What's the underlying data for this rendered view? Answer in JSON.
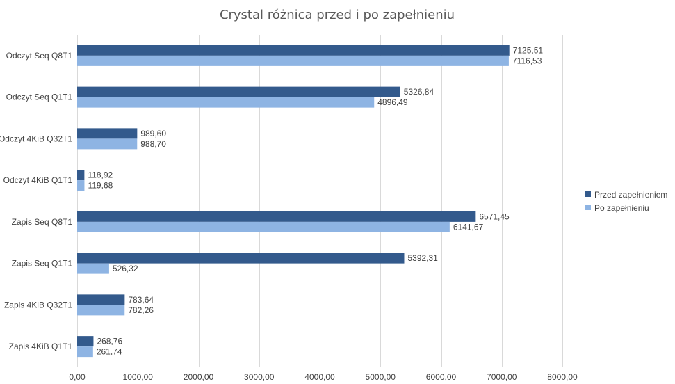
{
  "chart_data": {
    "type": "bar",
    "orientation": "horizontal",
    "title": "Crystal różnica przed i po zapełnieniu",
    "categories": [
      "Odczyt Seq Q8T1",
      "Odczyt Seq Q1T1",
      "Odczyt 4KiB Q32T1",
      "Odczyt 4KiB Q1T1",
      "Zapis Seq Q8T1",
      "Zapis Seq Q1T1",
      "Zapis 4KiB Q32T1",
      "Zapis 4KiB Q1T1"
    ],
    "series": [
      {
        "name": "Przed zapełnieniem",
        "color": "#335a8c",
        "values": [
          7125.51,
          5326.84,
          989.6,
          118.92,
          6571.45,
          5392.31,
          783.64,
          268.76
        ],
        "labels": [
          "7125,51",
          "5326,84",
          "989,60",
          "118,92",
          "6571,45",
          "5392,31",
          "783,64",
          "268,76"
        ]
      },
      {
        "name": "Po zapełnieniu",
        "color": "#8eb4e3",
        "values": [
          7116.53,
          4896.49,
          988.7,
          119.68,
          6141.67,
          526.32,
          782.26,
          261.74
        ],
        "labels": [
          "7116,53",
          "4896,49",
          "988,70",
          "119,68",
          "6141,67",
          "526,32",
          "782,26",
          "261,74"
        ]
      }
    ],
    "xlim": [
      0,
      8000
    ],
    "xticks": [
      0,
      1000,
      2000,
      3000,
      4000,
      5000,
      6000,
      7000,
      8000
    ],
    "xtick_labels": [
      "0,00",
      "1000,00",
      "2000,00",
      "3000,00",
      "4000,00",
      "5000,00",
      "6000,00",
      "7000,00",
      "8000,00"
    ],
    "grid": "vertical",
    "legend_position": "right",
    "gridline_color": "#d9d9d9"
  }
}
